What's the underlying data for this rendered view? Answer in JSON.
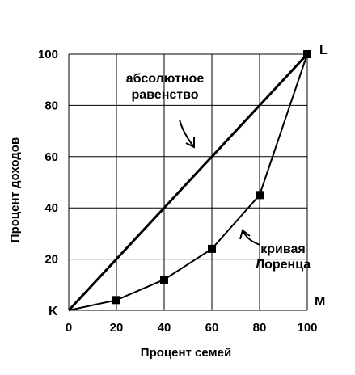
{
  "chart_data": {
    "type": "line",
    "xlabel": "Процент семей",
    "ylabel": "Процент доходов",
    "xlim": [
      0,
      100
    ],
    "ylim": [
      0,
      100
    ],
    "x_ticks": [
      "0",
      "20",
      "40",
      "60",
      "80",
      "100"
    ],
    "y_ticks": [
      "20",
      "40",
      "60",
      "80",
      "100"
    ],
    "grid": true,
    "series": [
      {
        "name": "абсолютное равенство",
        "x": [
          0,
          100
        ],
        "y": [
          0,
          100
        ],
        "markers": false
      },
      {
        "name": "кривая Лоренца",
        "x": [
          0,
          20,
          40,
          60,
          80,
          100
        ],
        "y": [
          0,
          4,
          12,
          24,
          45,
          100
        ],
        "markers": true
      }
    ],
    "annotations": {
      "equality_line1": "абсолютное",
      "equality_line2": "равенство",
      "lorenz_line1": "кривая",
      "lorenz_line2": "Лоренца"
    },
    "corner_labels": {
      "origin": "K",
      "top_right": "L",
      "bottom_right": "M"
    },
    "colors": {
      "line": "#000000",
      "grid": "#000000",
      "background": "#ffffff"
    }
  }
}
